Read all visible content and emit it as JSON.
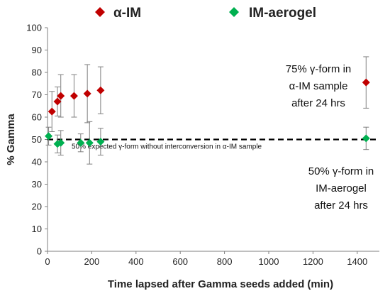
{
  "chart_data": {
    "type": "scatter",
    "title": "",
    "xlabel": "Time lapsed after Gamma seeds added (min)",
    "ylabel": "% Gamma",
    "xlim": [
      0,
      1500
    ],
    "ylim": [
      0,
      100
    ],
    "xticks": [
      0,
      200,
      400,
      600,
      800,
      1000,
      1200,
      1400
    ],
    "yticks": [
      0,
      10,
      20,
      30,
      40,
      50,
      60,
      70,
      80,
      90,
      100
    ],
    "grid": false,
    "legend": "top",
    "series": [
      {
        "name": "α-IM",
        "color": "#C00000",
        "marker": "diamond",
        "points": [
          {
            "x": 20,
            "y": 62.5,
            "err": 9
          },
          {
            "x": 45,
            "y": 67,
            "err": 6.5
          },
          {
            "x": 60,
            "y": 69.5,
            "err": 9.5
          },
          {
            "x": 120,
            "y": 69.5,
            "err": 9.5
          },
          {
            "x": 180,
            "y": 70.5,
            "err": 13
          },
          {
            "x": 240,
            "y": 72,
            "err": 10.5
          },
          {
            "x": 1440,
            "y": 75.5,
            "err": 11.5
          }
        ]
      },
      {
        "name": "IM-aerogel",
        "color": "#00B050",
        "marker": "diamond",
        "points": [
          {
            "x": 5,
            "y": 51.5,
            "err": 4
          },
          {
            "x": 45,
            "y": 48,
            "err": 4
          },
          {
            "x": 60,
            "y": 48.5,
            "err": 5.5
          },
          {
            "x": 150,
            "y": 48.5,
            "err": 4
          },
          {
            "x": 190,
            "y": 48.5,
            "err": 9.5
          },
          {
            "x": 240,
            "y": 49,
            "err": 6
          },
          {
            "x": 1440,
            "y": 50.5,
            "err": 5
          }
        ]
      }
    ],
    "reference_line": {
      "y": 50,
      "style": "dashed",
      "label": "50% expected γ-form without interconversion in α-IM sample"
    },
    "annotations": [
      {
        "lines": [
          "75% γ-form in",
          "α-IM sample",
          "after 24 hrs"
        ]
      },
      {
        "lines": [
          "50% γ-form in",
          "IM-aerogel",
          "after 24 hrs"
        ]
      }
    ]
  }
}
